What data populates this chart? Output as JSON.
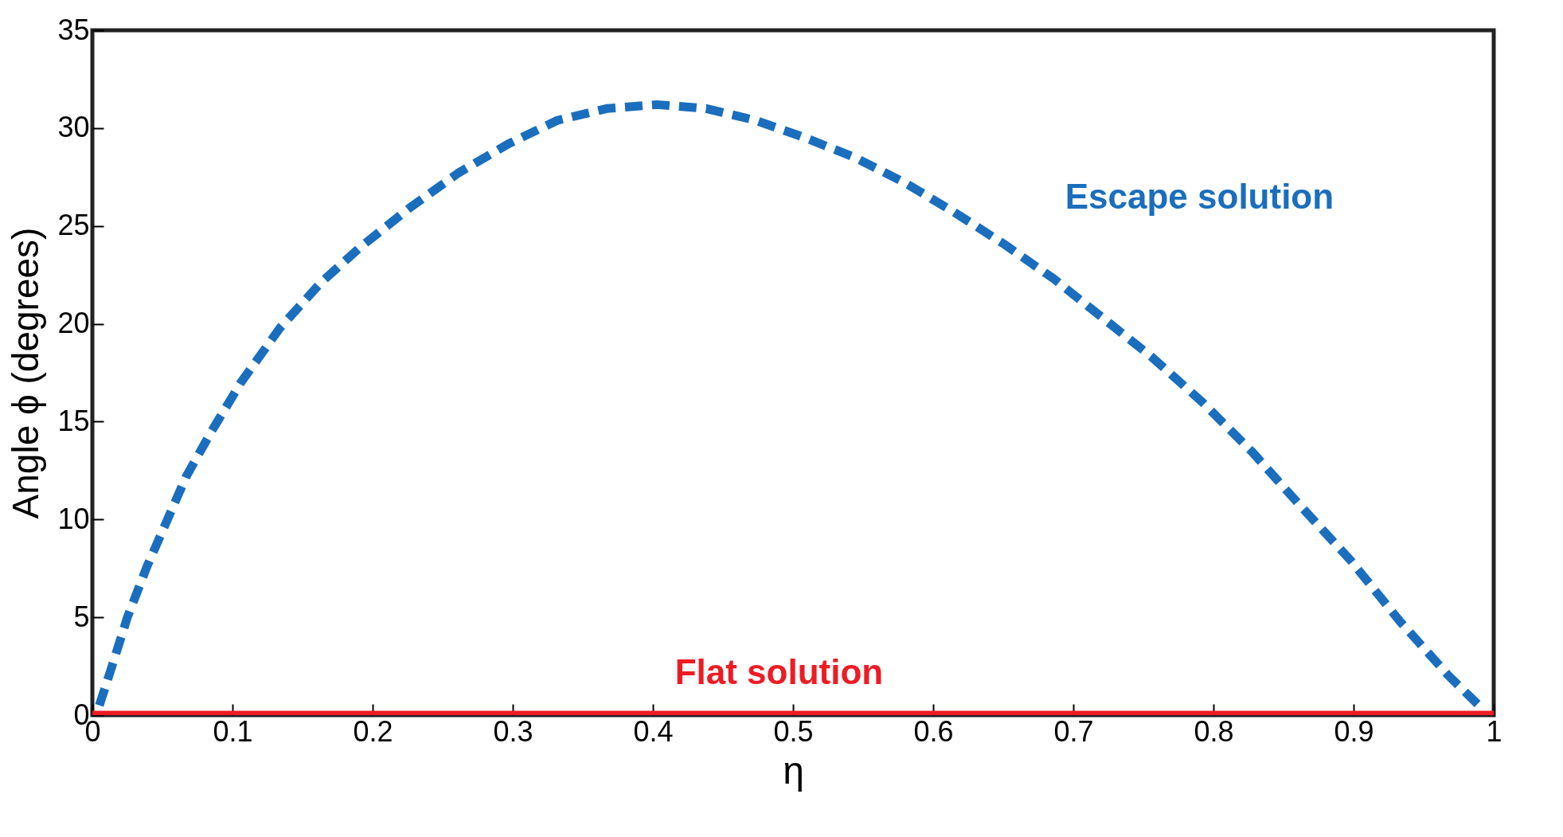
{
  "chart_data": {
    "type": "line",
    "xlabel": "η",
    "ylabel": "Angle ϕ (degrees)",
    "xlim": [
      0,
      1
    ],
    "ylim": [
      0,
      35
    ],
    "xticks": [
      0,
      0.1,
      0.2,
      0.3,
      0.4,
      0.5,
      0.6,
      0.7,
      0.8,
      0.9,
      1
    ],
    "yticks": [
      0,
      5,
      10,
      15,
      20,
      25,
      30,
      35
    ],
    "grid": false,
    "series": [
      {
        "name": "Escape solution",
        "color": "#1a6ebd",
        "line_style": "dashed",
        "x": [
          0.005,
          0.014,
          0.025,
          0.039,
          0.053,
          0.067,
          0.085,
          0.106,
          0.134,
          0.163,
          0.191,
          0.226,
          0.261,
          0.297,
          0.332,
          0.367,
          0.403,
          0.438,
          0.473,
          0.509,
          0.544,
          0.58,
          0.615,
          0.65,
          0.686,
          0.721,
          0.756,
          0.792,
          0.827,
          0.862,
          0.898,
          0.933,
          0.968,
          0.993
        ],
        "values": [
          0.5,
          2.5,
          5,
          7.6,
          9.9,
          12.2,
          14.5,
          17,
          19.8,
          22.1,
          23.9,
          25.9,
          27.7,
          29.2,
          30.4,
          31,
          31.2,
          31,
          30.4,
          29.5,
          28.5,
          27.2,
          25.7,
          24.1,
          22.3,
          20.3,
          18.3,
          16,
          13.5,
          10.7,
          7.9,
          4.8,
          2,
          0.25
        ]
      },
      {
        "name": "Flat solution",
        "color": "#ed1c24",
        "line_style": "solid",
        "x": [
          0,
          1
        ],
        "values": [
          0,
          0
        ]
      }
    ]
  }
}
